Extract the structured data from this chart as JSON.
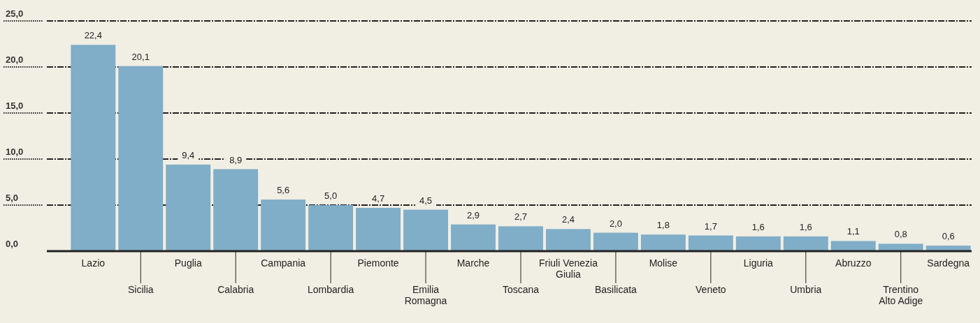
{
  "chart_data": {
    "type": "bar",
    "categories": [
      "Lazio",
      "Sicilia",
      "Puglia",
      "Calabria",
      "Campania",
      "Lombardia",
      "Piemonte",
      "Emilia\nRomagna",
      "Marche",
      "Toscana",
      "Friuli Venezia\nGiulia",
      "Basilicata",
      "Molise",
      "Veneto",
      "Liguria",
      "Umbria",
      "Abruzzo",
      "Trentino\nAlto Adige",
      "Sardegna"
    ],
    "values": [
      22.4,
      20.1,
      9.4,
      8.9,
      5.6,
      5.0,
      4.7,
      4.5,
      2.9,
      2.7,
      2.4,
      2.0,
      1.8,
      1.7,
      1.6,
      1.6,
      1.1,
      0.8,
      0.6
    ],
    "value_labels": [
      "22,4",
      "20,1",
      "9,4",
      "8,9",
      "5,6",
      "5,0",
      "4,7",
      "4,5",
      "2,9",
      "2,7",
      "2,4",
      "2,0",
      "1,8",
      "1,7",
      "1,6",
      "1,6",
      "1,1",
      "0,8",
      "0,6"
    ],
    "color": "#80adc7",
    "ylim": [
      0,
      25
    ],
    "yticks": [
      {
        "value": 0,
        "label": "0,0"
      },
      {
        "value": 5,
        "label": "5,0"
      },
      {
        "value": 10,
        "label": "10,0"
      },
      {
        "value": 15,
        "label": "15,0"
      },
      {
        "value": 20,
        "label": "20,0"
      },
      {
        "value": 25,
        "label": "25,0"
      }
    ],
    "grid": "y"
  }
}
